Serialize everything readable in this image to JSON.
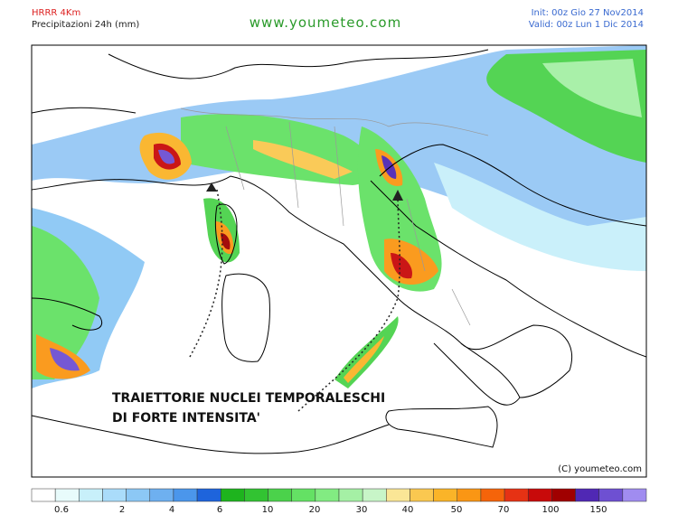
{
  "header": {
    "model": "HRRR 4Km",
    "product": "Precipitazioni 24h (mm)",
    "site": "www.youmeteo.com",
    "init": "Init: 00z Gio  27 Nov2014",
    "valid": "Valid: 00z Lun  1  Dic 2014"
  },
  "annotation": {
    "line1": "TRAIETTORIE NUCLEI TEMPORALESCHI",
    "line2": "DI FORTE INTENSITA'"
  },
  "copyright": "(C) youmeteo.com",
  "legend": {
    "colors": [
      "#ffffff",
      "#e8fbfb",
      "#c8f0fa",
      "#aadcfa",
      "#8cc8f5",
      "#6eb0f0",
      "#4b96eb",
      "#1e64dc",
      "#1eb41e",
      "#32c332",
      "#4bd24b",
      "#64e164",
      "#82eb82",
      "#a5f0a5",
      "#c8f5c8",
      "#fae696",
      "#fac850",
      "#fab428",
      "#fa9614",
      "#f5640a",
      "#e63214",
      "#c80a0a",
      "#a00000",
      "#5028b4",
      "#6e50d2",
      "#a08cf0"
    ],
    "labels": [
      0.6,
      2,
      4,
      6,
      10,
      20,
      30,
      40,
      50,
      70,
      100,
      150
    ]
  }
}
